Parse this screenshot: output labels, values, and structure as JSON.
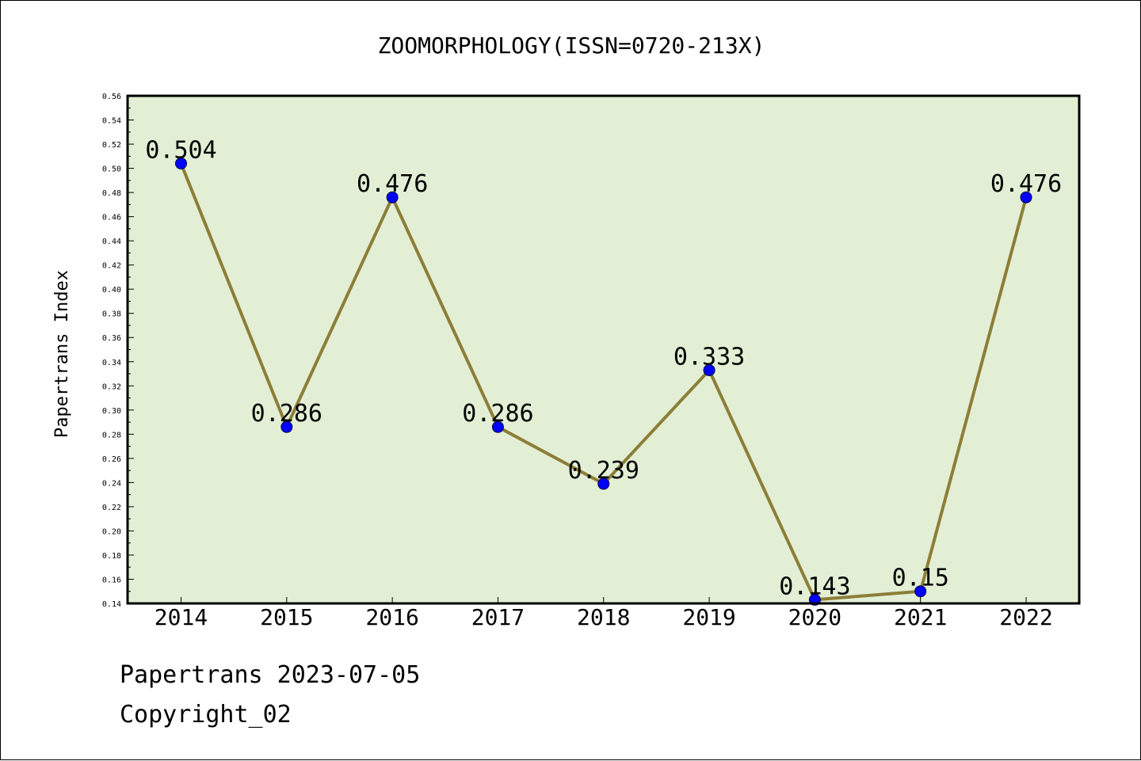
{
  "footer": {
    "line1": "Papertrans 2023-07-05",
    "line2": "Copyright_02"
  },
  "chart_data": {
    "type": "line",
    "title": "ZOOMORPHOLOGY(ISSN=0720-213X)",
    "xlabel": "",
    "ylabel": "Papertrans Index",
    "categories": [
      "2014",
      "2015",
      "2016",
      "2017",
      "2018",
      "2019",
      "2020",
      "2021",
      "2022"
    ],
    "values": [
      0.504,
      0.286,
      0.476,
      0.286,
      0.239,
      0.333,
      0.143,
      0.15,
      0.476
    ],
    "data_labels": [
      "0.504",
      "0.286",
      "0.476",
      "0.286",
      "0.239",
      "0.333",
      "0.143",
      "0.15",
      "0.476"
    ],
    "ylim": [
      0.14,
      0.56
    ],
    "yticks": [
      "0.14",
      "0.16",
      "0.18",
      "0.20",
      "0.22",
      "0.24",
      "0.26",
      "0.28",
      "0.30",
      "0.32",
      "0.34",
      "0.36",
      "0.38",
      "0.40",
      "0.42",
      "0.44",
      "0.46",
      "0.48",
      "0.50",
      "0.52",
      "0.54",
      "0.56"
    ],
    "grid": false,
    "colors": {
      "plot_background": "#e2efd5",
      "line": "#8c7e37",
      "marker": "#0000ff"
    }
  }
}
